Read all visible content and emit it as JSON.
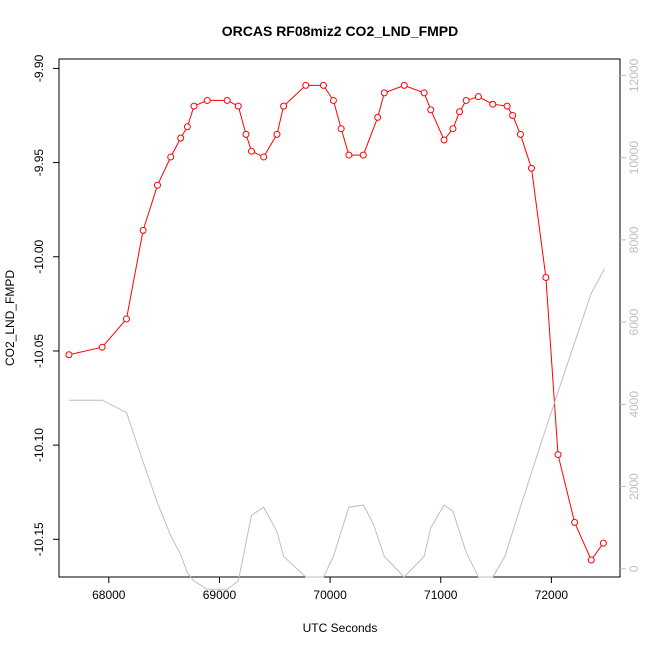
{
  "chart_data": {
    "type": "line",
    "title": "ORCAS RF08miz2 CO2_LND_FMPD",
    "xlabel": "UTC Seconds",
    "ylabel": "CO2_LND_FMPD",
    "xlim": [
      67550,
      72620
    ],
    "ylim": [
      -10.17,
      -9.895
    ],
    "y2lim": [
      -200,
      12400
    ],
    "xticks": [
      68000,
      69000,
      70000,
      71000,
      72000
    ],
    "yticks": [
      -9.9,
      -9.95,
      -10.0,
      -10.05,
      -10.1,
      -10.15
    ],
    "ytick_labels": [
      "-9.90",
      "-9.95",
      "-10.00",
      "-10.05",
      "-10.10",
      "-10.15"
    ],
    "y2ticks": [
      0,
      2000,
      4000,
      6000,
      8000,
      10000,
      12000
    ],
    "series": [
      {
        "axis": "left",
        "color": "#ff0000",
        "marker": "open-circle",
        "x": [
          67640,
          67940,
          68160,
          68310,
          68440,
          68560,
          68650,
          68710,
          68770,
          68890,
          69070,
          69170,
          69240,
          69290,
          69400,
          69520,
          69580,
          69780,
          69940,
          70030,
          70100,
          70170,
          70300,
          70430,
          70490,
          70670,
          70850,
          70910,
          71030,
          71110,
          71170,
          71230,
          71340,
          71470,
          71600,
          71650,
          71720,
          71820,
          71950,
          72060,
          72210,
          72360,
          72470
        ],
        "y": [
          -10.052,
          -10.048,
          -10.033,
          -9.986,
          -9.962,
          -9.947,
          -9.937,
          -9.931,
          -9.92,
          -9.917,
          -9.917,
          -9.92,
          -9.935,
          -9.944,
          -9.947,
          -9.935,
          -9.92,
          -9.909,
          -9.909,
          -9.917,
          -9.932,
          -9.946,
          -9.946,
          -9.926,
          -9.913,
          -9.909,
          -9.913,
          -9.922,
          -9.938,
          -9.932,
          -9.923,
          -9.917,
          -9.915,
          -9.919,
          -9.92,
          -9.925,
          -9.935,
          -9.953,
          -10.011,
          -10.105,
          -10.141,
          -10.161,
          -10.152
        ]
      },
      {
        "axis": "right",
        "color": "#bebebe",
        "marker": "none",
        "x": [
          67640,
          67940,
          68160,
          68310,
          68440,
          68560,
          68650,
          68710,
          68770,
          68890,
          69070,
          69170,
          69290,
          69400,
          69520,
          69580,
          69780,
          69940,
          70030,
          70170,
          70300,
          70390,
          70490,
          70670,
          70850,
          70910,
          71030,
          71110,
          71230,
          71340,
          71470,
          71580,
          71720,
          71900,
          72060,
          72210,
          72360,
          72480
        ],
        "y": [
          4100,
          4100,
          3800,
          2600,
          1600,
          800,
          350,
          -100,
          -300,
          -500,
          -500,
          -300,
          1300,
          1500,
          900,
          300,
          -200,
          -200,
          300,
          1500,
          1550,
          1100,
          300,
          -200,
          300,
          1000,
          1550,
          1400,
          400,
          -200,
          -200,
          300,
          1500,
          3000,
          4300,
          5500,
          6700,
          7300
        ]
      }
    ]
  }
}
